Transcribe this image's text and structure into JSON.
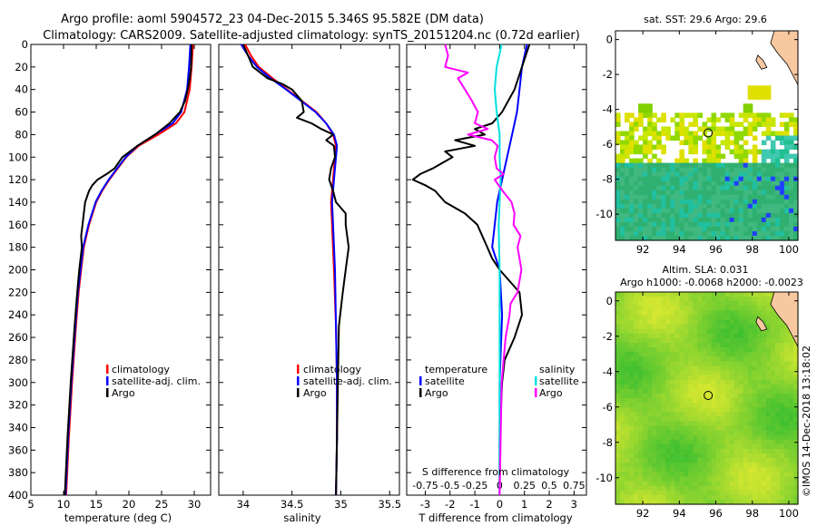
{
  "header": {
    "line1": "Argo profile: aoml 5904572_23 04-Dec-2015 5.346S 95.582E (DM data)",
    "line2": "Climatology: CARS2009. Satellite-adjusted climatology: synTS_20151204.nc (0.72d earlier)"
  },
  "colors": {
    "climatology": "#ff0000",
    "satellite": "#0000ff",
    "argo": "#000000",
    "salinity_sat": "#00e0e0",
    "salinity_argo": "#ff00ff"
  },
  "depth_ticks": [
    "0",
    "20",
    "40",
    "60",
    "80",
    "100",
    "120",
    "140",
    "160",
    "180",
    "200",
    "220",
    "240",
    "260",
    "280",
    "300",
    "320",
    "340",
    "360",
    "380",
    "400"
  ],
  "chart_data": [
    {
      "type": "line",
      "id": "temperature",
      "xlabel": "temperature (deg C)",
      "ylabel": "",
      "xlim": [
        5,
        32.5
      ],
      "ylim": [
        0,
        400
      ],
      "y_inverted": true,
      "xticks": [
        "5",
        "10",
        "15",
        "20",
        "25",
        "30"
      ],
      "xtick_values": [
        5,
        10,
        15,
        20,
        25,
        30
      ],
      "legend": [
        "climatology",
        "satellite-adj. clim.",
        "Argo"
      ],
      "series": [
        {
          "name": "climatology",
          "color": "#ff0000",
          "y": [
            0,
            20,
            40,
            60,
            70,
            80,
            90,
            100,
            110,
            120,
            130,
            140,
            160,
            180,
            200,
            220,
            250,
            300,
            350,
            400
          ],
          "x": [
            29.8,
            29.6,
            29.3,
            28.5,
            27.2,
            24.5,
            21.5,
            19.6,
            18.3,
            17.0,
            15.9,
            15.0,
            13.9,
            13.1,
            12.7,
            12.3,
            11.9,
            11.3,
            10.8,
            10.4
          ]
        },
        {
          "name": "satellite-adj. clim.",
          "color": "#0000ff",
          "y": [
            0,
            20,
            40,
            60,
            70,
            80,
            90,
            100,
            110,
            120,
            130,
            140,
            160,
            180,
            200,
            220,
            250,
            300,
            350,
            400
          ],
          "x": [
            29.4,
            29.2,
            28.9,
            28.0,
            26.7,
            24.0,
            21.3,
            19.5,
            18.2,
            16.9,
            15.8,
            14.9,
            13.8,
            13.0,
            12.6,
            12.2,
            11.8,
            11.2,
            10.7,
            10.3
          ]
        },
        {
          "name": "Argo",
          "color": "#000000",
          "y": [
            0,
            20,
            30,
            40,
            50,
            60,
            70,
            80,
            90,
            100,
            110,
            115,
            120,
            125,
            130,
            140,
            150,
            160,
            170,
            180,
            200,
            220,
            250,
            300,
            350,
            400
          ],
          "x": [
            29.6,
            29.5,
            29.3,
            29.0,
            28.6,
            27.8,
            26.2,
            24.0,
            21.3,
            19.0,
            17.8,
            16.6,
            15.2,
            14.4,
            13.9,
            13.3,
            13.1,
            12.9,
            12.7,
            12.8,
            12.4,
            12.1,
            11.7,
            11.1,
            10.6,
            10.2
          ]
        }
      ]
    },
    {
      "type": "line",
      "id": "salinity",
      "xlabel": "salinity",
      "ylabel": "",
      "xlim": [
        33.75,
        35.6
      ],
      "ylim": [
        0,
        400
      ],
      "y_inverted": true,
      "xticks": [
        "34",
        "34.5",
        "35",
        "35.5"
      ],
      "xtick_values": [
        34,
        34.5,
        35,
        35.5
      ],
      "legend": [
        "climatology",
        "satellite-adj. clim.",
        "Argo"
      ],
      "series": [
        {
          "name": "climatology",
          "color": "#ff0000",
          "y": [
            0,
            10,
            20,
            30,
            40,
            50,
            60,
            70,
            80,
            90,
            100,
            120,
            140,
            160,
            200,
            250,
            300,
            350,
            400
          ],
          "x": [
            34.02,
            34.08,
            34.16,
            34.3,
            34.45,
            34.6,
            34.75,
            34.85,
            34.92,
            34.95,
            34.94,
            34.92,
            34.9,
            34.91,
            34.93,
            34.95,
            34.96,
            34.96,
            34.95
          ]
        },
        {
          "name": "satellite-adj. clim.",
          "color": "#0000ff",
          "y": [
            0,
            10,
            20,
            30,
            40,
            50,
            60,
            70,
            80,
            90,
            100,
            120,
            140,
            160,
            200,
            250,
            300,
            350,
            400
          ],
          "x": [
            33.98,
            34.05,
            34.14,
            34.28,
            34.44,
            34.59,
            34.74,
            34.85,
            34.93,
            34.96,
            34.95,
            34.93,
            34.91,
            34.92,
            34.94,
            34.95,
            34.96,
            34.96,
            34.95
          ]
        },
        {
          "name": "Argo",
          "color": "#000000",
          "y": [
            0,
            10,
            20,
            30,
            35,
            40,
            50,
            60,
            65,
            70,
            75,
            80,
            85,
            90,
            100,
            110,
            120,
            130,
            140,
            150,
            160,
            180,
            200,
            220,
            250,
            300,
            350,
            400
          ],
          "x": [
            34.0,
            34.05,
            34.1,
            34.25,
            34.4,
            34.5,
            34.6,
            34.62,
            34.55,
            34.7,
            34.8,
            34.92,
            34.85,
            34.93,
            34.94,
            34.9,
            34.88,
            34.92,
            34.95,
            35.05,
            35.05,
            35.08,
            35.05,
            35.02,
            34.98,
            34.97,
            34.96,
            34.95
          ]
        }
      ]
    },
    {
      "type": "line",
      "id": "differences",
      "xlabel": "T difference from climatology",
      "top_axis_label": "S difference from climatology",
      "xlim": [
        -3.75,
        3.5
      ],
      "ylim": [
        0,
        400
      ],
      "y_inverted": true,
      "xticks": [
        "-3",
        "-2",
        "-1",
        "0",
        "1",
        "2",
        "3"
      ],
      "xtick_values": [
        -3,
        -2,
        -1,
        0,
        1,
        2,
        3
      ],
      "s_ticks": [
        "-0.75",
        "-0.5",
        "-0.25",
        "0",
        "0.25",
        "0.5",
        "0.75"
      ],
      "s_tick_values": [
        -0.75,
        -0.5,
        -0.25,
        0,
        0.25,
        0.5,
        0.75
      ],
      "legend_left": {
        "title": "temperature",
        "items": [
          "satellite",
          "Argo"
        ]
      },
      "legend_right": {
        "title": "salinity",
        "items": [
          "satellite",
          "Argo"
        ]
      },
      "series": [
        {
          "name": "T satellite",
          "color": "#0000ff",
          "y": [
            0,
            20,
            40,
            60,
            80,
            100,
            120,
            140,
            160,
            180,
            200,
            240,
            300,
            400
          ],
          "x": [
            1.1,
            0.9,
            0.8,
            0.7,
            0.5,
            0.3,
            0.1,
            -0.1,
            -0.2,
            -0.3,
            0.0,
            0.1,
            0.0,
            0.0
          ]
        },
        {
          "name": "T Argo",
          "color": "#000000",
          "y": [
            0,
            20,
            40,
            60,
            70,
            75,
            80,
            85,
            90,
            95,
            100,
            110,
            115,
            120,
            125,
            130,
            140,
            150,
            160,
            170,
            180,
            190,
            200,
            220,
            240,
            260,
            280,
            300,
            350,
            400
          ],
          "x": [
            1.2,
            0.9,
            0.6,
            0.1,
            -0.3,
            -1.0,
            -0.6,
            -1.8,
            -1.0,
            -2.2,
            -1.9,
            -2.7,
            -3.2,
            -3.5,
            -3.0,
            -2.6,
            -2.2,
            -1.4,
            -0.9,
            -0.7,
            -0.5,
            -0.3,
            0.0,
            0.8,
            0.9,
            0.6,
            0.2,
            0.1,
            0.0,
            0.0
          ]
        },
        {
          "name": "S satellite",
          "color": "#00e0e0",
          "y": [
            0,
            20,
            40,
            60,
            80,
            100,
            120,
            140,
            160,
            200,
            250,
            300,
            350,
            400
          ],
          "x": [
            0.02,
            -0.03,
            -0.05,
            -0.03,
            0.0,
            0.0,
            0.01,
            0.0,
            -0.01,
            0.0,
            0.0,
            0.0,
            0.0,
            0.0
          ]
        },
        {
          "name": "S Argo",
          "color": "#ff00ff",
          "y": [
            0,
            10,
            20,
            25,
            30,
            40,
            50,
            60,
            70,
            75,
            80,
            85,
            90,
            100,
            110,
            115,
            120,
            130,
            140,
            150,
            160,
            170,
            180,
            190,
            200,
            220,
            230,
            240,
            260,
            300,
            350,
            400
          ],
          "x": [
            -0.55,
            -0.52,
            -0.55,
            -0.32,
            -0.42,
            -0.35,
            -0.28,
            -0.22,
            -0.25,
            -0.12,
            -0.32,
            -0.08,
            -0.02,
            -0.05,
            -0.03,
            0.04,
            -0.05,
            0.03,
            0.12,
            0.15,
            0.14,
            0.21,
            0.18,
            0.2,
            0.22,
            0.18,
            0.11,
            0.1,
            0.06,
            0.02,
            0.01,
            0.0
          ]
        }
      ]
    },
    {
      "type": "heatmap",
      "id": "sst_map",
      "title": "sat. SST: 29.6 Argo: 29.6",
      "xlim": [
        90.5,
        100.5
      ],
      "ylim": [
        -11.5,
        0.5
      ],
      "xticks": [
        "92",
        "94",
        "96",
        "98",
        "100"
      ],
      "xtick_values": [
        92,
        94,
        96,
        98,
        100
      ],
      "yticks": [
        "0",
        "-2",
        "-4",
        "-6",
        "-8",
        "-10"
      ],
      "ytick_values": [
        0,
        -2,
        -4,
        -6,
        -8,
        -10
      ],
      "marker": {
        "lon": 95.582,
        "lat": -5.346
      }
    },
    {
      "type": "heatmap",
      "id": "sla_map",
      "title": "Altim. SLA: 0.031",
      "subtitle": "Argo h1000: -0.0068 h2000: -0.0023",
      "xlim": [
        90.5,
        100.5
      ],
      "ylim": [
        -11.5,
        0.5
      ],
      "xticks": [
        "92",
        "94",
        "96",
        "98",
        "100"
      ],
      "xtick_values": [
        92,
        94,
        96,
        98,
        100
      ],
      "yticks": [
        "0",
        "-2",
        "-4",
        "-6",
        "-8",
        "-10"
      ],
      "ytick_values": [
        0,
        -2,
        -4,
        -6,
        -8,
        -10
      ],
      "marker": {
        "lon": 95.582,
        "lat": -5.346
      }
    }
  ],
  "footer": {
    "credit": "©IMOS 14-Dec-2018 13:18:02"
  }
}
